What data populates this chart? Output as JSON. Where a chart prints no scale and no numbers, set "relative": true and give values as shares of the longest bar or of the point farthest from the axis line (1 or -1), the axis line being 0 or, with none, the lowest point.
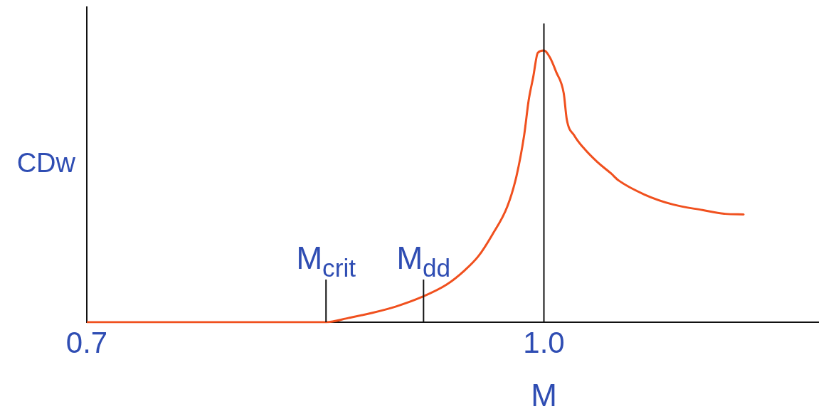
{
  "chart_data": {
    "type": "line",
    "xlabel": "M",
    "ylabel": "CDw",
    "relative": true,
    "color": "#f0501e",
    "x": [
      0.7,
      0.857,
      0.872,
      0.887,
      0.903,
      0.92,
      0.936,
      0.948,
      0.957,
      0.966,
      0.976,
      0.982,
      0.987,
      0.99,
      0.993,
      0.996,
      1.0,
      1.004,
      1.008,
      1.013,
      1.015,
      1.02,
      1.026,
      1.035,
      1.044,
      1.049,
      1.066,
      1.085,
      1.104,
      1.119,
      1.131
    ],
    "values": [
      0,
      0,
      0.016,
      0.034,
      0.058,
      0.093,
      0.138,
      0.191,
      0.243,
      0.321,
      0.426,
      0.538,
      0.687,
      0.817,
      0.903,
      0.992,
      1,
      0.974,
      0.922,
      0.843,
      0.747,
      0.687,
      0.642,
      0.59,
      0.548,
      0.522,
      0.47,
      0.433,
      0.413,
      0.399,
      0.397
    ],
    "xlim": [
      0.7,
      1.18
    ],
    "xticks": [
      0.7,
      {
        "value": 1.0,
        "label": "1.0"
      }
    ],
    "tick_labels": "x",
    "ref_lines": [
      {
        "axis": "x",
        "value": 1.0
      },
      {
        "axis": "x",
        "value": 0.857,
        "label": "M$_{crit}$"
      },
      {
        "axis": "x",
        "value": 0.921,
        "label": "M$_{dd}$"
      }
    ]
  }
}
